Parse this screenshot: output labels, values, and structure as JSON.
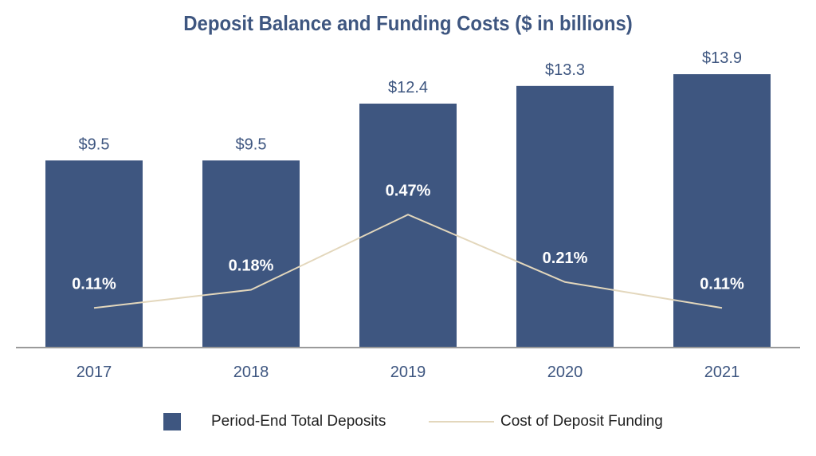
{
  "colors": {
    "bar": "#3e5680",
    "line": "#e3d7bc",
    "axis": "#9a9a9a",
    "bar_label": "#3e5680",
    "line_label": "#ffffff",
    "tick": "#3e5680"
  },
  "chart_data": {
    "type": "bar",
    "title": "Deposit Balance and Funding Costs ($ in billions)",
    "categories": [
      "2017",
      "2018",
      "2019",
      "2020",
      "2021"
    ],
    "series": [
      {
        "name": "Period-End Total Deposits",
        "type": "bar",
        "values": [
          9.5,
          9.5,
          12.4,
          13.3,
          13.9
        ],
        "labels": [
          "$9.5",
          "$9.5",
          "$12.4",
          "$13.3",
          "$13.9"
        ]
      },
      {
        "name": "Cost of Deposit Funding",
        "type": "line",
        "values": [
          0.11,
          0.18,
          0.47,
          0.21,
          0.11
        ],
        "labels": [
          "0.11%",
          "0.18%",
          "0.47%",
          "0.21%",
          "0.11%"
        ]
      }
    ],
    "legend": "bottom",
    "grid": false
  }
}
